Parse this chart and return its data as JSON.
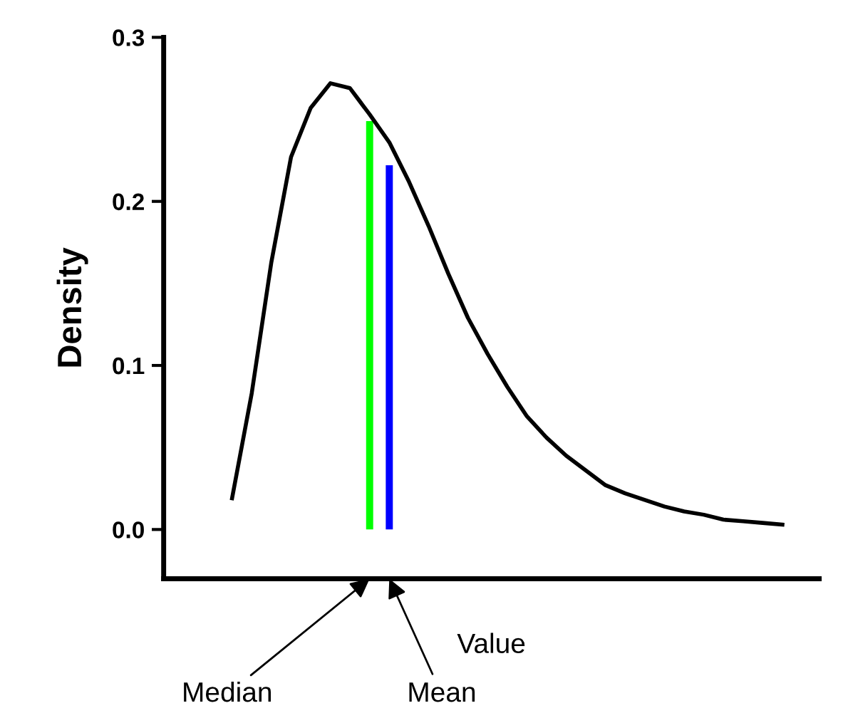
{
  "chart_data": {
    "type": "line",
    "xlabel": "Value",
    "ylabel": "Density",
    "categories": [
      null,
      null,
      null,
      null,
      null,
      null,
      null,
      null,
      null,
      null,
      null,
      null,
      null,
      null,
      null,
      null,
      null,
      null,
      null,
      null,
      null,
      null,
      null,
      null,
      null,
      null,
      null,
      null,
      null
    ],
    "ylim": [
      -0.03,
      0.3
    ],
    "yticks": [
      {
        "value": 0,
        "label": "0.0"
      },
      {
        "value": 0.1,
        "label": "0.1"
      },
      {
        "value": 0.2,
        "label": "0.2"
      },
      {
        "value": 0.3,
        "label": "0.3"
      }
    ],
    "grid": false,
    "legend": false,
    "marker": "none",
    "line_style": "solid",
    "series": [
      {
        "color": "#000000",
        "values": [
          0.019,
          0.083,
          0.163,
          0.227,
          0.257,
          0.272,
          0.269,
          0.253,
          0.236,
          0.212,
          0.185,
          0.156,
          0.129,
          0.107,
          0.087,
          0.069,
          0.056,
          0.045,
          0.036,
          0.027,
          0.022,
          0.018,
          0.014,
          0.011,
          0.009,
          0.006,
          0.005,
          0.004,
          0.003
        ]
      },
      {
        "type": "bar",
        "color": "#00ff00",
        "values": [
          null,
          null,
          null,
          null,
          null,
          null,
          null,
          0.249,
          null,
          null,
          null,
          null,
          null,
          null,
          null,
          null,
          null,
          null,
          null,
          null,
          null,
          null,
          null,
          null,
          null,
          null,
          null,
          null,
          null
        ]
      },
      {
        "type": "bar",
        "color": "#0000ff",
        "values": [
          null,
          null,
          null,
          null,
          null,
          null,
          null,
          null,
          0.222,
          null,
          null,
          null,
          null,
          null,
          null,
          null,
          null,
          null,
          null,
          null,
          null,
          null,
          null,
          null,
          null,
          null,
          null,
          null,
          null
        ]
      }
    ],
    "annotations": [
      "Median",
      "Mean"
    ]
  }
}
